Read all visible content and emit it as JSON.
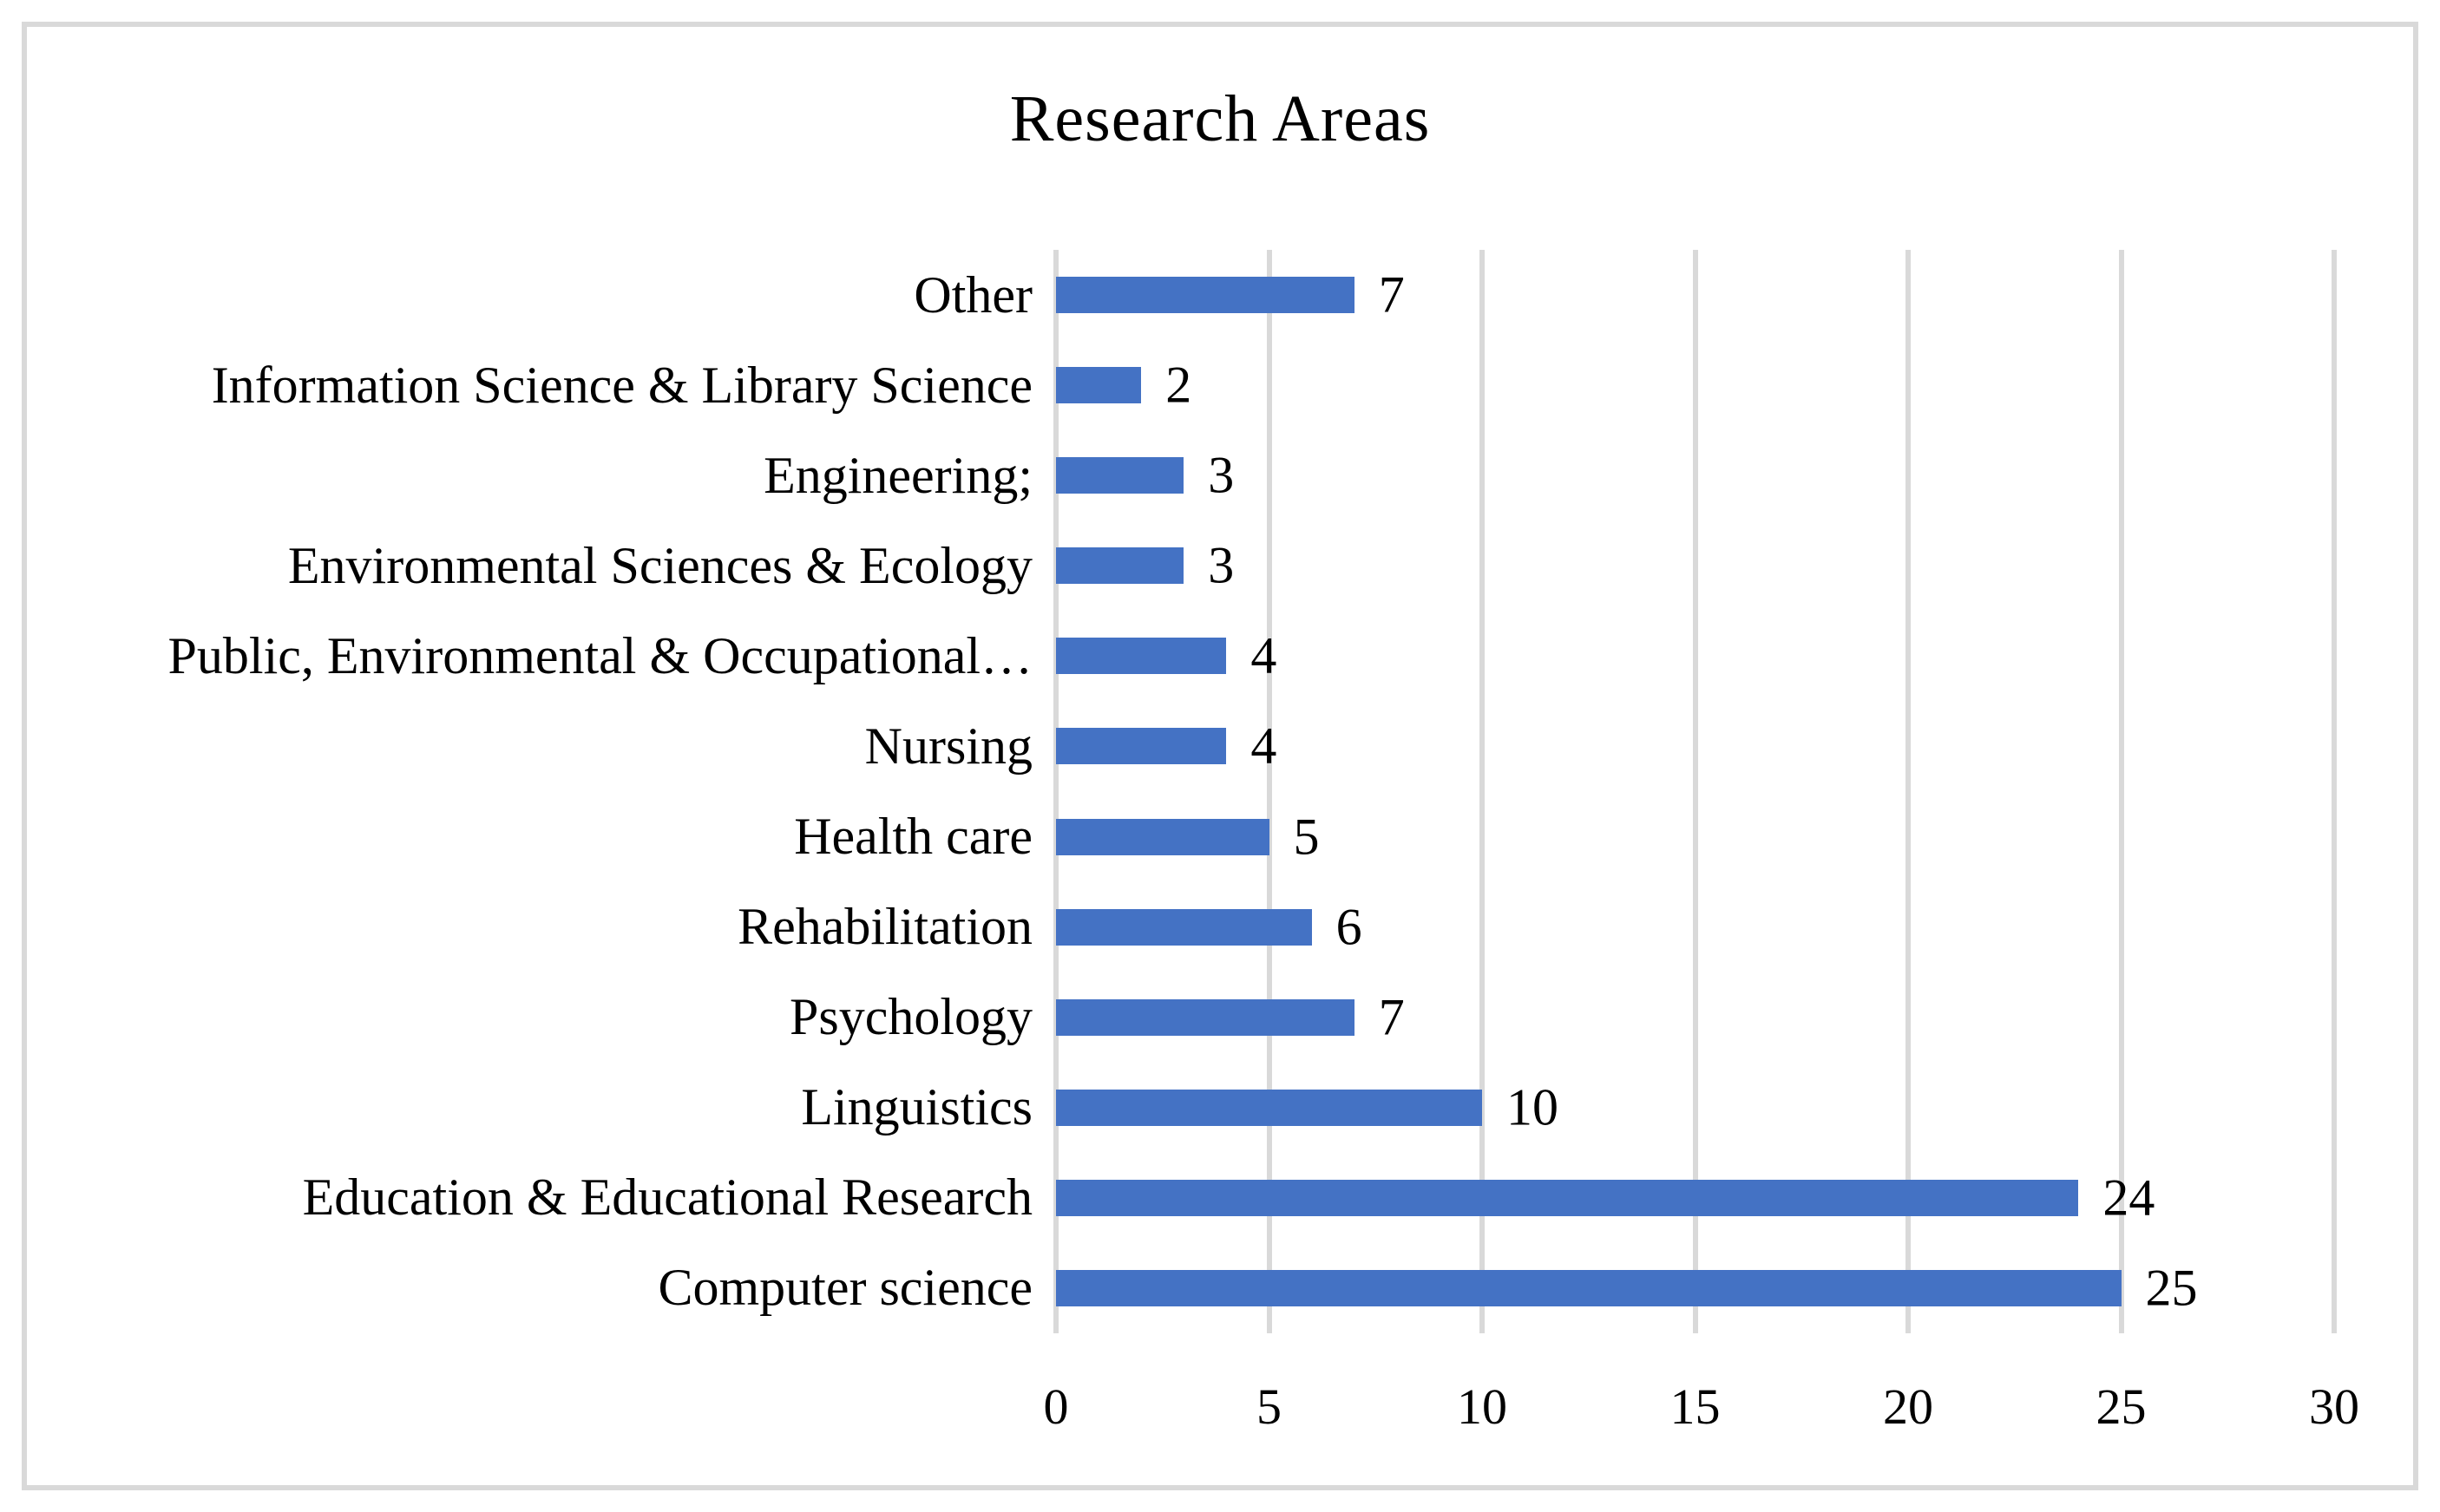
{
  "chart_data": {
    "type": "bar",
    "orientation": "horizontal",
    "title": "Research Areas",
    "order": "top-to-bottom",
    "categories": [
      "Other",
      "Information Science & Library Science",
      "Engineering;",
      "Environmental Sciences & Ecology",
      "Public, Environmental & Occupational…",
      "Nursing",
      "Health care",
      "Rehabilitation",
      "Psychology",
      "Linguistics",
      "Education & Educational Research",
      "Computer science"
    ],
    "values": [
      7,
      2,
      3,
      3,
      4,
      4,
      5,
      6,
      7,
      10,
      24,
      25
    ],
    "data_labels": [
      "7",
      "2",
      "3",
      "3",
      "4",
      "4",
      "5",
      "6",
      "7",
      "10",
      "24",
      "25"
    ],
    "xlabel": "",
    "ylabel": "",
    "xlim": [
      0,
      30
    ],
    "x_ticks": [
      0,
      5,
      10,
      15,
      20,
      25,
      30
    ],
    "grid": "vertical",
    "legend": "none",
    "bar_color": "#4472c4",
    "gridline_color": "#d9d9d9",
    "frame_color": "#d9d9d9",
    "text_color": "#000000",
    "background_color": "#ffffff"
  }
}
